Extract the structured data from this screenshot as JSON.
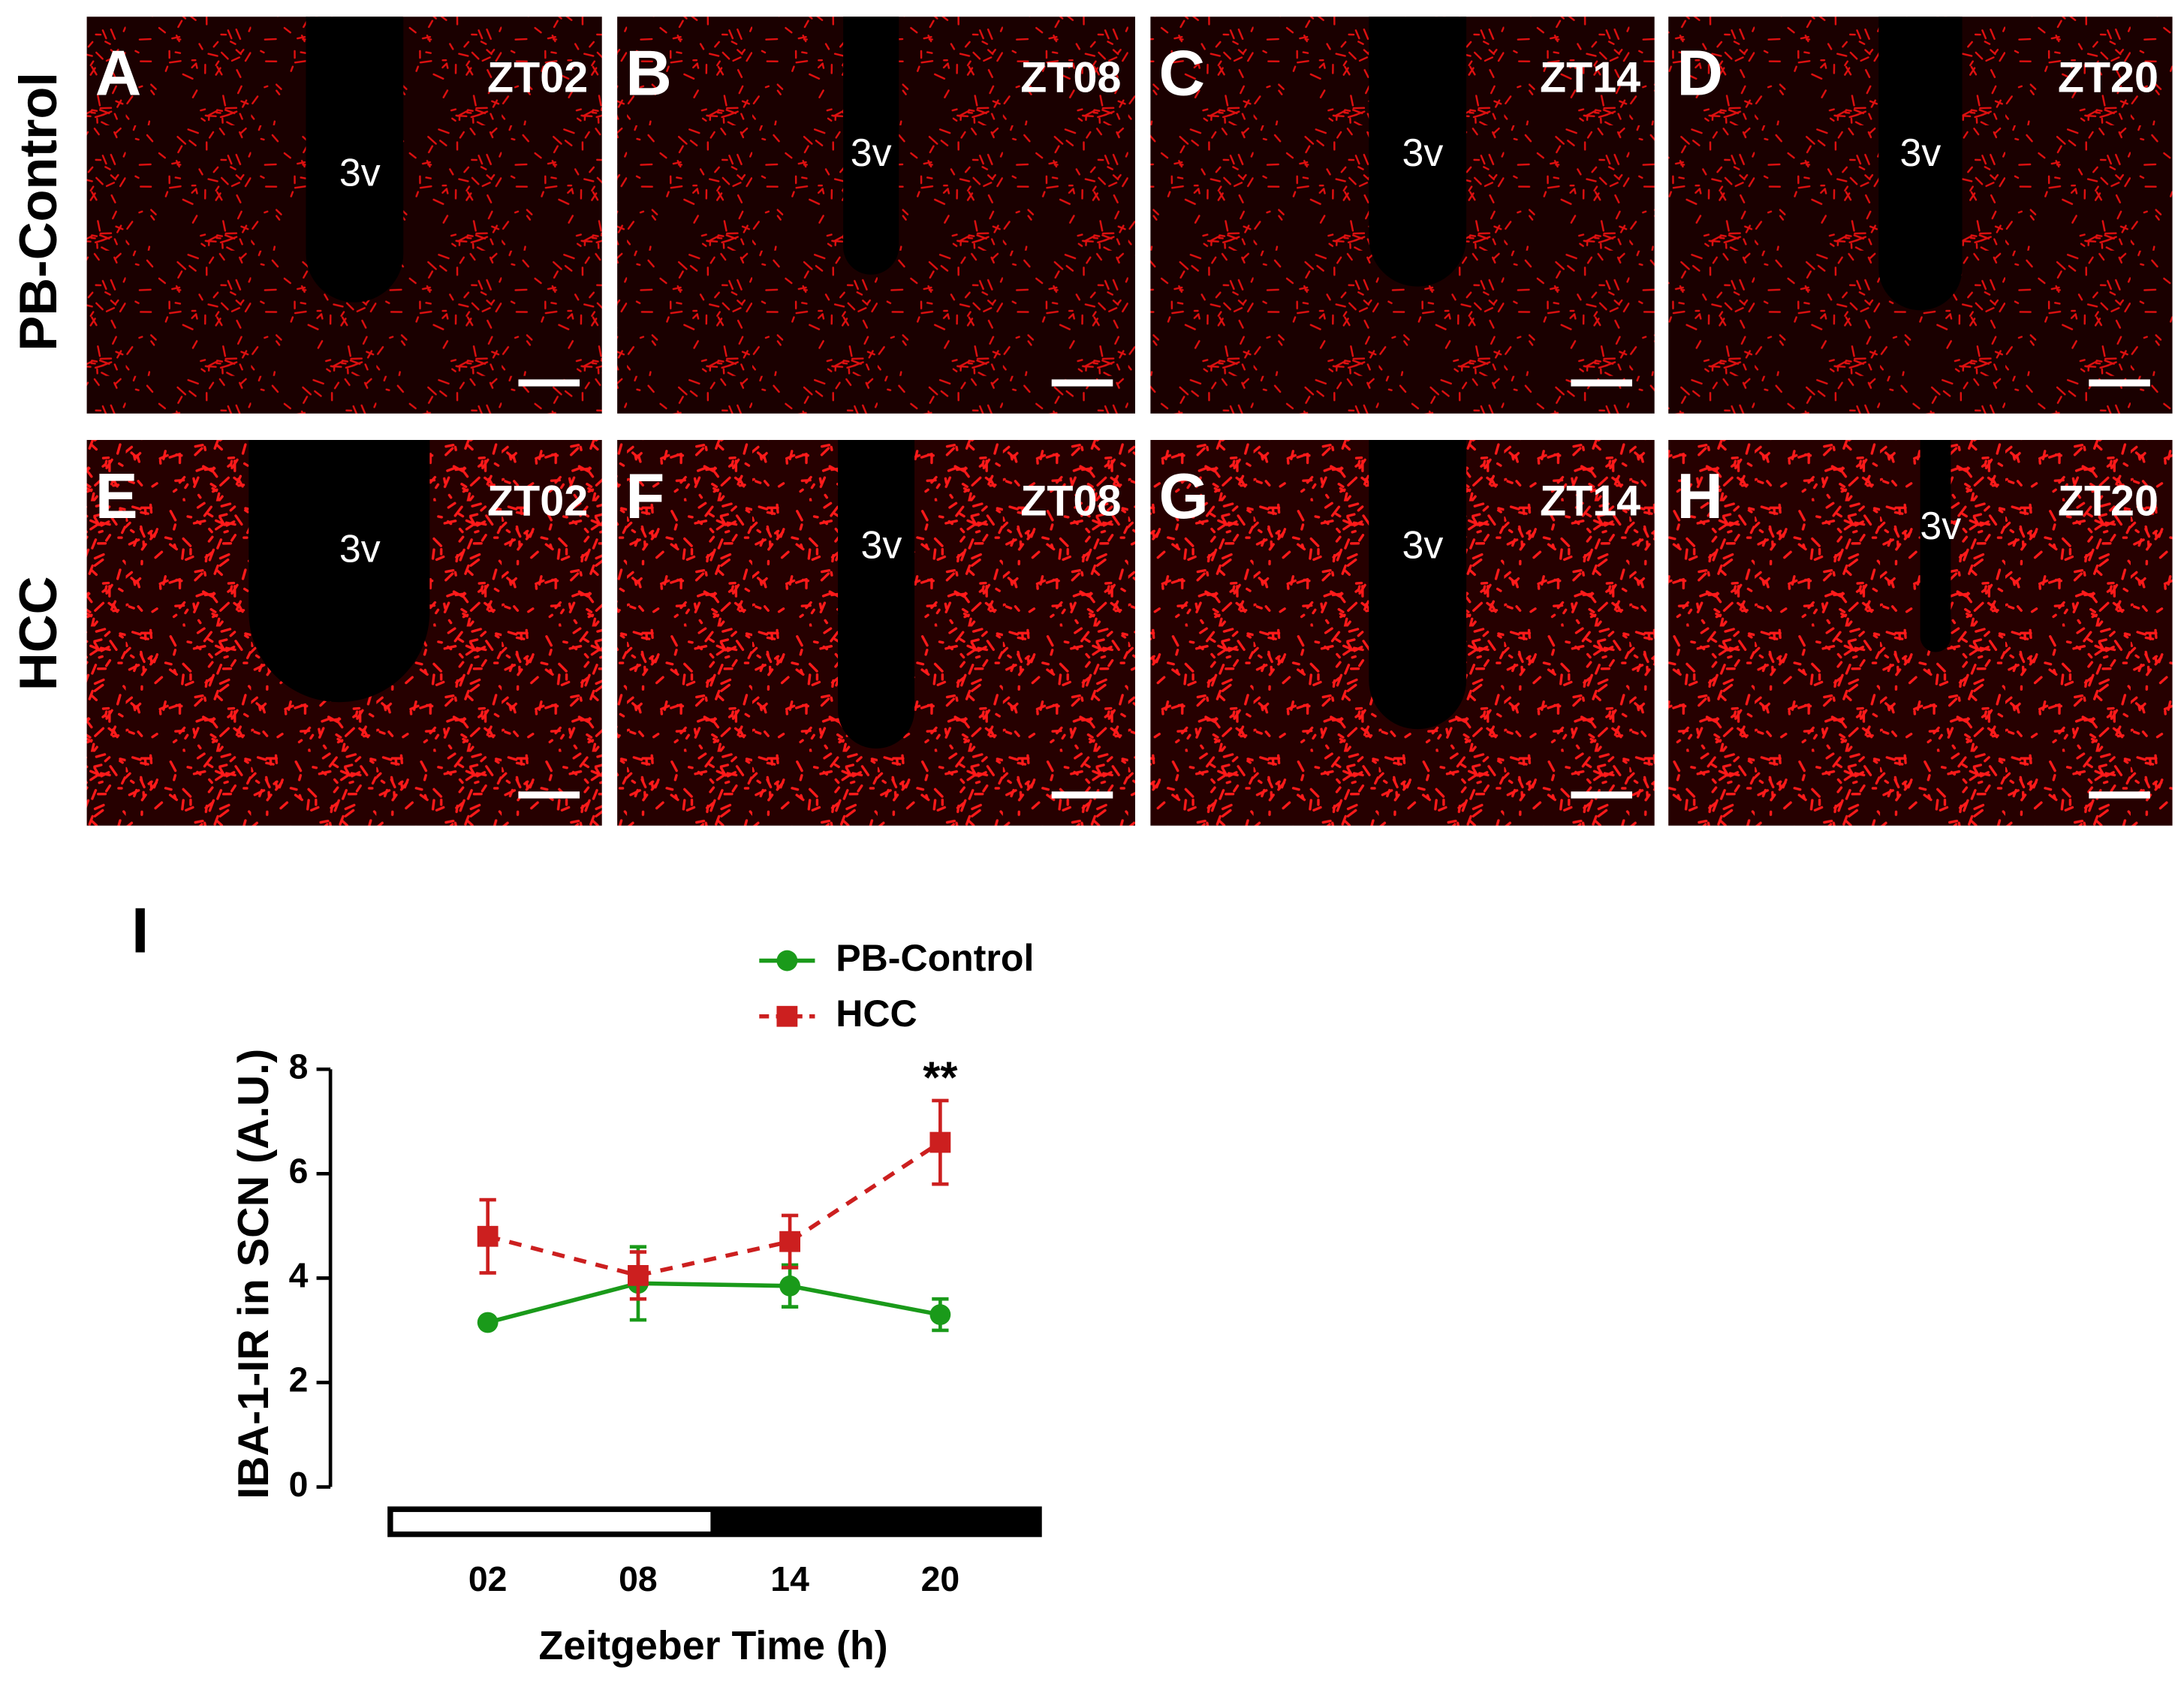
{
  "row_labels": [
    "PB-Control",
    "HCC"
  ],
  "panels": [
    {
      "letter": "A",
      "time": "ZT02",
      "region": "3v"
    },
    {
      "letter": "B",
      "time": "ZT08",
      "region": "3v"
    },
    {
      "letter": "C",
      "time": "ZT14",
      "region": "3v"
    },
    {
      "letter": "D",
      "time": "ZT20",
      "region": "3v"
    },
    {
      "letter": "E",
      "time": "ZT02",
      "region": "3v"
    },
    {
      "letter": "F",
      "time": "ZT08",
      "region": "3v"
    },
    {
      "letter": "G",
      "time": "ZT14",
      "region": "3v"
    },
    {
      "letter": "H",
      "time": "ZT20",
      "region": "3v"
    }
  ],
  "chart_data": {
    "type": "line",
    "panel_label": "I",
    "xlabel": "Zeitgeber Time (h)",
    "ylabel": "IBA-1-IR in SCN (A.U.)",
    "categories": [
      "02",
      "08",
      "14",
      "20"
    ],
    "series": [
      {
        "name": "PB-Control",
        "color": "#1a9a1a",
        "marker": "circle",
        "line_style": "solid",
        "values": [
          3.15,
          3.9,
          3.85,
          3.3
        ],
        "errors": [
          0.05,
          0.7,
          0.4,
          0.3
        ]
      },
      {
        "name": "HCC",
        "color": "#cc1f1f",
        "marker": "square",
        "line_style": "dashed",
        "values": [
          4.8,
          4.05,
          4.7,
          6.6
        ],
        "errors": [
          0.7,
          0.45,
          0.5,
          0.8
        ]
      }
    ],
    "annotation": "**",
    "ylim": [
      0,
      8
    ],
    "yticks": [
      0,
      2,
      4,
      6,
      8
    ],
    "grid": false
  }
}
